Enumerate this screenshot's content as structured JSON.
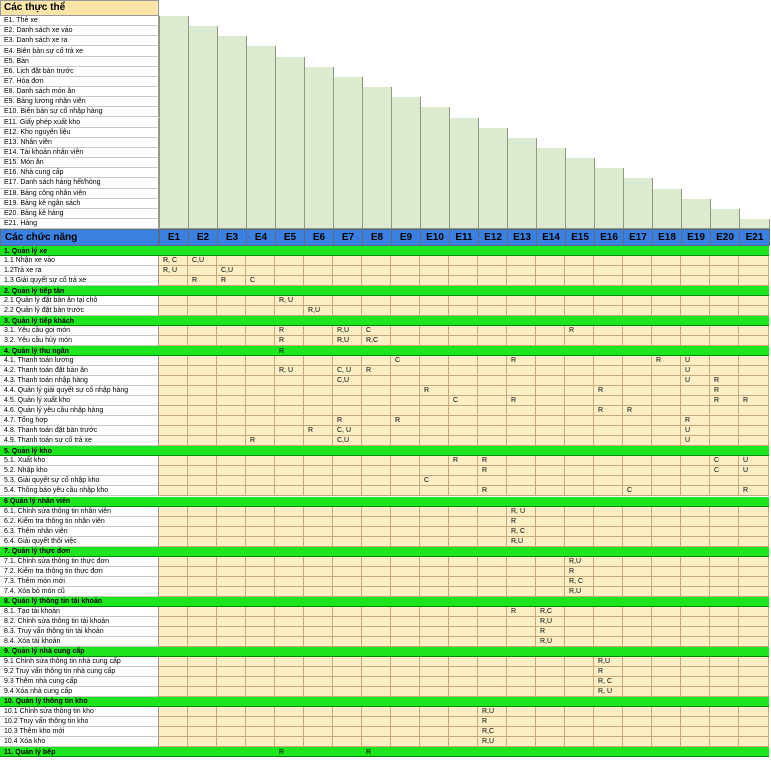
{
  "entities_title": "Các thực thể",
  "entities": [
    "E1. Thẻ xe",
    "E2. Danh sách xe vào",
    "E3. Danh sách xe ra",
    "E4. Biên bản sự cố trả xe",
    "E5. Bàn",
    "E6. Lịch đặt bàn trước",
    "E7. Hóa đơn",
    "E8. Danh sách món ăn",
    "E9. Bảng lương nhân viên",
    "E10. Biên bản sự cố nhập hàng",
    "E11. Giấy phép xuất kho",
    "E12. Kho nguyên liệu",
    "E13. Nhân viên",
    "E14. Tài khoản nhân viên",
    "E15. Món ăn",
    "E16. Nhà cung cấp",
    "E17. Danh sách hàng hết/hỏng",
    "E18. Bảng công nhân viên",
    "E19. Bảng kê ngân sách",
    "E20. Bảng kê hàng",
    "E21. Hàng"
  ],
  "header": {
    "label": "Các chức năng",
    "columns": [
      "E1",
      "E2",
      "E3",
      "E4",
      "E5",
      "E6",
      "E7",
      "E8",
      "E9",
      "E10",
      "E11",
      "E12",
      "E13",
      "E14",
      "E15",
      "E16",
      "E17",
      "E18",
      "E19",
      "E20",
      "E21"
    ]
  },
  "rows": [
    {
      "label": "1. Quản lý xe",
      "section": true,
      "cells": {}
    },
    {
      "label": "1.1 Nhận xe vào",
      "cells": {
        "1": "R, C",
        "2": "C,U"
      }
    },
    {
      "label": "1.2Trả xe ra",
      "cells": {
        "1": "R, U",
        "3": "C,U"
      }
    },
    {
      "label": "1.3 Giải quyết sự cố trả xe",
      "cells": {
        "2": "R",
        "3": "R",
        "4": "C"
      }
    },
    {
      "label": "2. Quản lý tiếp tân",
      "section": true,
      "cells": {}
    },
    {
      "label": "2.1 Quản lý đặt bàn ăn tại chỗ",
      "cells": {
        "5": "R, U"
      }
    },
    {
      "label": "2.2 Quản lý đặt bàn trước",
      "cells": {
        "6": "R,U"
      }
    },
    {
      "label": "3. Quản lý tiếp khách",
      "section": true,
      "cells": {}
    },
    {
      "label": "3.1. Yêu cầu gọi món",
      "cells": {
        "5": "R",
        "7": "R,U",
        "8": "C",
        "15": "R"
      }
    },
    {
      "label": "3.2. Yêu cầu hủy món",
      "cells": {
        "5": "R",
        "7": "R,U",
        "8": "R,C"
      }
    },
    {
      "label": "4. Quản lý thu ngân",
      "section": true,
      "cells": {
        "5": "R"
      }
    },
    {
      "label": "4.1. Thanh toán lương",
      "cells": {
        "9": "C",
        "13": "R",
        "18": "R",
        "19": "U"
      }
    },
    {
      "label": "4.2. Thanh toán đặt bàn ăn",
      "cells": {
        "5": "R, U",
        "7": "C, U",
        "8": "R",
        "19": "U"
      }
    },
    {
      "label": "4.3. Thanh toán nhập hàng",
      "cells": {
        "7": "C,U",
        "19": "U",
        "20": "R"
      }
    },
    {
      "label": "4.4. Quản lý giải quyết sự cố nhập hàng",
      "cells": {
        "10": "R",
        "16": "R",
        "20": "R"
      }
    },
    {
      "label": "4.5. Quản lý xuất kho",
      "cells": {
        "11": "C",
        "13": "R",
        "20": "R",
        "21": "R"
      }
    },
    {
      "label": "4.6. Quản lý yêu cầu nhập hàng",
      "cells": {
        "16": "R",
        "17": "R"
      }
    },
    {
      "label": "4.7. Tổng hợp",
      "cells": {
        "7": "R",
        "9": "R",
        "19": "R"
      }
    },
    {
      "label": "4.8. Thanh toán đặt bàn trước",
      "cells": {
        "6": "R",
        "7": "C, U",
        "19": "U"
      }
    },
    {
      "label": "4.9. Thanh toán sự cố trả xe",
      "cells": {
        "4": "R",
        "7": "C,U",
        "19": "U"
      }
    },
    {
      "label": "5. Quản lý kho",
      "section": true,
      "cells": {}
    },
    {
      "label": "5.1. Xuất kho",
      "cells": {
        "11": "R",
        "12": "R",
        "20": "C",
        "21": "U"
      }
    },
    {
      "label": "5.2. Nhập kho",
      "cells": {
        "12": "R",
        "20": "C",
        "21": "U"
      }
    },
    {
      "label": "5.3. Giải quyết sự cố nhập kho",
      "cells": {
        "10": "C"
      }
    },
    {
      "label": "5.4. Thông báo yêu cầu nhập kho",
      "cells": {
        "12": "R",
        "17": "C",
        "21": "R"
      }
    },
    {
      "label": "6 Quản lý nhân viên",
      "section": true,
      "cells": {}
    },
    {
      "label": "6.1. Chỉnh sửa thông tin nhân viên",
      "cells": {
        "13": "R, U"
      }
    },
    {
      "label": "6.2. Kiểm tra thông tin nhân viên",
      "cells": {
        "13": "R"
      }
    },
    {
      "label": "6.3. Thêm nhân viên",
      "cells": {
        "13": "R, C"
      }
    },
    {
      "label": "6.4. Giải quyết thôi việc",
      "cells": {
        "13": "R,U"
      }
    },
    {
      "label": "7. Quản lý thực đơn",
      "section": true,
      "cells": {}
    },
    {
      "label": "7.1. Chỉnh sửa thông tin thực đơn",
      "cells": {
        "15": "R,U"
      }
    },
    {
      "label": "7.2. Kiểm tra thông tin thực đơn",
      "cells": {
        "15": "R"
      }
    },
    {
      "label": "7.3. Thêm món mới",
      "cells": {
        "15": "R, C"
      }
    },
    {
      "label": "7.4. Xóa bỏ món cũ",
      "cells": {
        "15": "R,U"
      }
    },
    {
      "label": "8. Quản lý thông tin tài khoản",
      "section": true,
      "cells": {}
    },
    {
      "label": "8.1. Tạo tài khoản",
      "cells": {
        "13": "R",
        "14": "R,C"
      }
    },
    {
      "label": "8.2. Chỉnh sửa thông tin tài khoản",
      "cells": {
        "14": "R,U"
      }
    },
    {
      "label": "8.3. Truy vấn thông tin tài khoản",
      "cells": {
        "14": "R"
      }
    },
    {
      "label": "8.4. Xóa tài khoản",
      "cells": {
        "14": "R,U"
      }
    },
    {
      "label": "9. Quản lý nhà cung cấp",
      "section": true,
      "cells": {}
    },
    {
      "label": "9.1 Chỉnh sửa thông tin nhà cung cấp",
      "cells": {
        "16": "R,U"
      }
    },
    {
      "label": "9.2 Truy vấn thông tin nhà cung cấp",
      "cells": {
        "16": "R"
      }
    },
    {
      "label": "9.3 Thêm nhà cung cấp",
      "cells": {
        "16": "R, C"
      }
    },
    {
      "label": "9.4 Xóa nhà cung cấp",
      "cells": {
        "16": "R, U"
      }
    },
    {
      "label": "10. Quản lý thông tin kho",
      "section": true,
      "cells": {}
    },
    {
      "label": "10.1 Chỉnh sửa thông tin kho",
      "cells": {
        "12": "R,U"
      }
    },
    {
      "label": "10.2 Truy vấn thông tin kho",
      "cells": {
        "12": "R"
      }
    },
    {
      "label": "10.3 Thêm kho mới",
      "cells": {
        "12": "R,C"
      }
    },
    {
      "label": "10.4 Xóa kho",
      "cells": {
        "12": "R,U"
      }
    },
    {
      "label": "11. Quản lý bếp",
      "section": true,
      "cells": {
        "5": "R",
        "8": "R"
      }
    }
  ]
}
